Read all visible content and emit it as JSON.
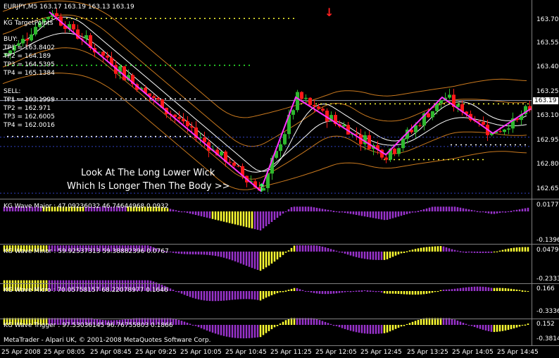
{
  "window": {
    "symbol_line": "EURJPY,M5  163.17 163.19 163.13 163.19",
    "copyright": "MetaTrader - Alpari UK, © 2001-2008 MetaQuotes Software Corp."
  },
  "targets": {
    "title": "KG TargetPoints",
    "buy": {
      "label": "BUY:",
      "lines": [
        "TP1 = 163.8402",
        "TP2 = 164.189",
        "TP3 = 164.5395",
        "TP4 = 165.1384"
      ]
    },
    "sell": {
      "label": "SELL:",
      "lines": [
        "TP1 = 163.1999",
        "TP2 = 162.971",
        "TP3 = 162.6005",
        "TP4 = 162.0016"
      ]
    }
  },
  "annotation": {
    "line1": "Look At The Long Lower Wick",
    "line2": "Which Is Longer Then The Body >>"
  },
  "colors": {
    "bull": "#2eb82e",
    "bear": "#ff1a1a",
    "zigzag": "#ff33ff",
    "osc_up": "#ffff33",
    "osc_down": "#9933cc",
    "ma_white": "#ffffff",
    "ma_orange": "#c8781e",
    "axis": "#808080"
  },
  "price_axis": {
    "ticks": [
      "163.70",
      "163.55",
      "163.40",
      "163.25",
      "163.10",
      "162.95",
      "162.80",
      "162.65"
    ],
    "current": "163.19"
  },
  "time_axis": {
    "ticks": [
      "25 Apr 2008",
      "25 Apr 08:05",
      "25 Apr 08:45",
      "25 Apr 09:25",
      "25 Apr 10:05",
      "25 Apr 10:45",
      "25 Apr 11:25",
      "25 Apr 12:05",
      "25 Apr 12:45",
      "25 Apr 13:25",
      "25 Apr 14:05",
      "25 Apr 14:45"
    ]
  },
  "indicators": [
    {
      "label": "KG Wave Major : 47.09236032 46.74644968 0.0932",
      "scale_top": "0.0177",
      "scale_bottom": "-0.1396"
    },
    {
      "label": "KG Wave Minor : 59.92537313 59.38882396 0.0767",
      "scale_top": "0.0479",
      "scale_bottom": "-0.2333"
    },
    {
      "label": "KG Wave Micro : 70.05758157 68.22078977 0.1646",
      "scale_top": "0.166",
      "scale_bottom": "-0.3336"
    },
    {
      "label": "KG Wave Trigger : 97.53036145 96.76755803 0.1866",
      "scale_top": "0.152",
      "scale_bottom": "-0.3814"
    }
  ],
  "chart_data": {
    "type": "candlestick",
    "symbol": "EURJPY",
    "timeframe": "M5",
    "ylim": [
      162.6,
      163.76
    ],
    "zigzag_points": [
      163.73,
      162.64,
      163.21,
      162.86,
      163.21,
      162.99,
      163.14
    ],
    "sell_levels": [
      163.1999,
      162.971,
      162.6005
    ],
    "buy_levels_visible": [
      163.8402
    ],
    "wave_major": {
      "min": -0.1396,
      "max": 0.0177,
      "last": 0.0932
    },
    "wave_minor": {
      "min": -0.2333,
      "max": 0.0479,
      "last": 0.0767
    },
    "wave_micro": {
      "min": -0.3336,
      "max": 0.166,
      "last": 0.1646
    },
    "wave_trigger": {
      "min": -0.3814,
      "max": 0.152,
      "last": 0.1866
    }
  }
}
